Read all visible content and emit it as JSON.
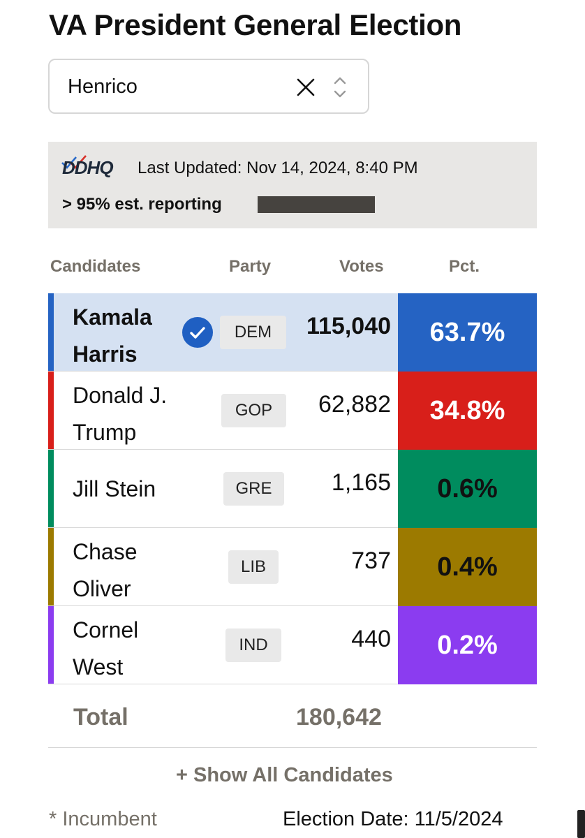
{
  "title": "VA President General Election",
  "county_select": {
    "value": "Henrico",
    "clear_icon": "close-icon",
    "sort_icon": "chevron-up-down-icon"
  },
  "status": {
    "logo": "DDHQ",
    "last_updated": "Last Updated: Nov 14, 2024, 8:40 PM",
    "reporting": "> 95% est. reporting",
    "reporting_fraction": 0.95
  },
  "table": {
    "headers": {
      "candidates": "Candidates",
      "party": "Party",
      "votes": "Votes",
      "pct": "Pct."
    },
    "rows": [
      {
        "first": "Kamala",
        "last": "Harris",
        "party": "DEM",
        "votes": "115,040",
        "pct": "63.7%",
        "color": "#2563c3",
        "pct_text_color": "#ffffff",
        "winner": true
      },
      {
        "first": "Donald J.",
        "last": "Trump",
        "party": "GOP",
        "votes": "62,882",
        "pct": "34.8%",
        "color": "#d81f1a",
        "pct_text_color": "#ffffff",
        "winner": false
      },
      {
        "name": "Jill Stein",
        "party": "GRE",
        "votes": "1,165",
        "pct": "0.6%",
        "color": "#008c5e",
        "pct_text_color": "#111111",
        "winner": false
      },
      {
        "first": "Chase",
        "last": "Oliver",
        "party": "LIB",
        "votes": "737",
        "pct": "0.4%",
        "color": "#9c7a00",
        "pct_text_color": "#111111",
        "winner": false
      },
      {
        "first": "Cornel",
        "last": "West",
        "party": "IND",
        "votes": "440",
        "pct": "0.2%",
        "color": "#8b3cf0",
        "pct_text_color": "#ffffff",
        "winner": false
      }
    ],
    "total_label": "Total",
    "total_votes": "180,642"
  },
  "show_all": "+ Show All Candidates",
  "footer": {
    "incumbent": "* Incumbent",
    "election_date": "Election Date: 11/5/2024"
  }
}
